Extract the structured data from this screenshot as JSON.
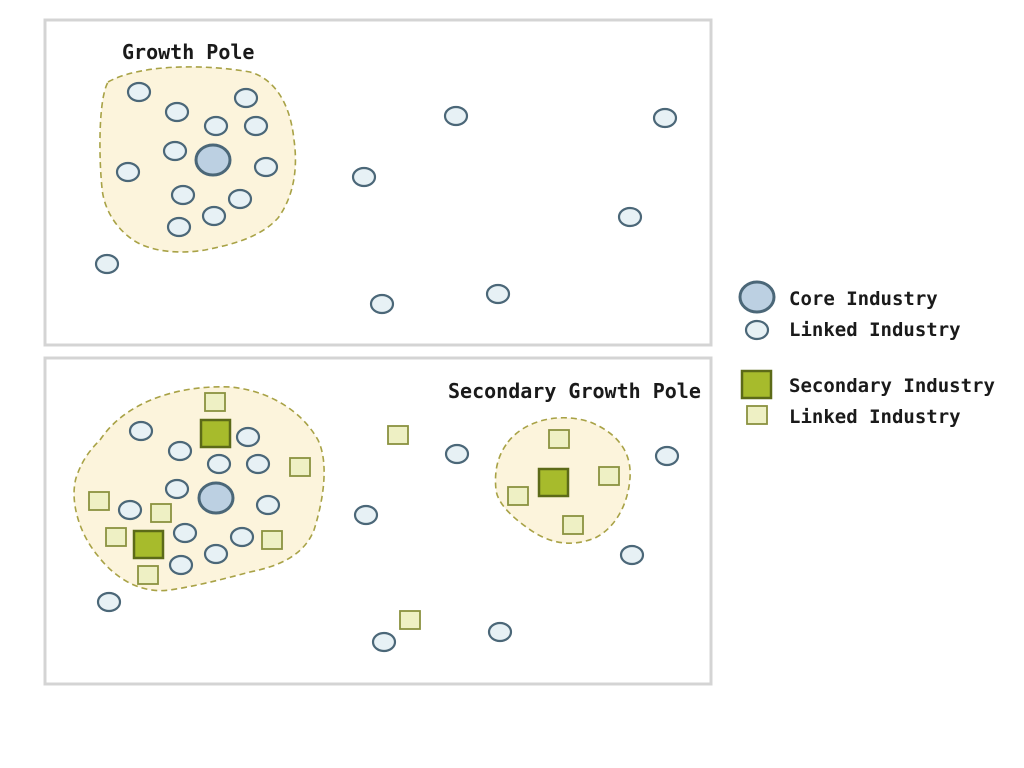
{
  "diagram": {
    "top_panel": {
      "label": "Growth Pole"
    },
    "bottom_panel": {
      "label": "Secondary Growth Pole"
    }
  },
  "legend": {
    "core_industry": "Core Industry",
    "linked_industry_circle": "Linked Industry",
    "secondary_industry": "Secondary Industry",
    "linked_industry_square": "Linked Industry"
  },
  "colors": {
    "core_fill": "#bcd0e2",
    "linked_circle_fill": "#e7f1f5",
    "secondary_fill": "#a7bb2c",
    "linked_square_fill": "#eef0c4",
    "pole_fill": "#fcf4dc"
  }
}
